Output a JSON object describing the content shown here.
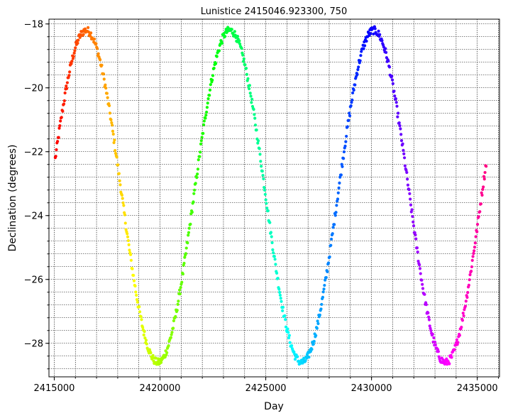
{
  "chart_data": {
    "type": "scatter",
    "title": "Lunistice 2415046.923300, 750",
    "xlabel": "Day",
    "ylabel": "Declination (degrees)",
    "xlim": [
      2414750,
      2436050
    ],
    "ylim": [
      -29.05,
      -17.85
    ],
    "x_ticks": [
      2415000,
      2420000,
      2425000,
      2430000,
      2435000
    ],
    "x_tick_labels": [
      "2415000",
      "2420000",
      "2425000",
      "2430000",
      "2435000"
    ],
    "x_minor_step": 1000,
    "y_ticks": [
      -28,
      -26,
      -24,
      -22,
      -20,
      -18
    ],
    "y_tick_labels": [
      "−28",
      "−26",
      "−24",
      "−22",
      "−20",
      "−18"
    ],
    "y_minor_step": 0.4,
    "grid": true,
    "marker_size": 4.2,
    "color_map": "hsv",
    "series": [
      {
        "x_start": 2415047,
        "x_step": 27.2,
        "count": 750,
        "model": {
          "center": -23.4,
          "amplitude": 5.2,
          "period_days": 6800,
          "peak_day": 2416500,
          "jitter": 0.12
        }
      }
    ]
  }
}
